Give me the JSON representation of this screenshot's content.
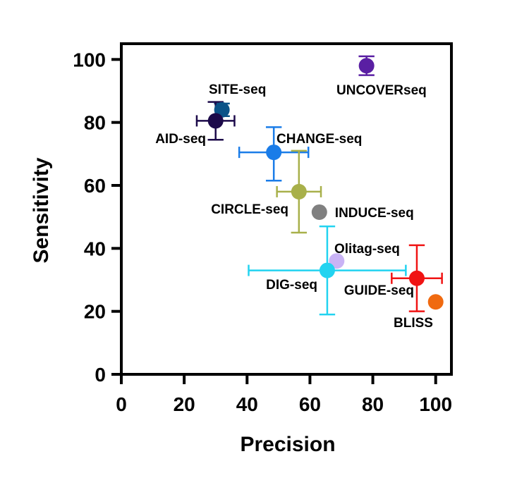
{
  "chart_data": {
    "type": "scatter",
    "title": "",
    "xlabel": "Precision",
    "ylabel": "Sensitivity",
    "xlim": [
      0,
      105
    ],
    "ylim": [
      0,
      105
    ],
    "xticks": [
      0,
      20,
      40,
      60,
      80,
      100
    ],
    "yticks": [
      0,
      20,
      40,
      60,
      80,
      100
    ],
    "grid": false,
    "legend": "none",
    "points": [
      {
        "label": "UNCOVERseq",
        "x": 78,
        "y": 98,
        "xerr": [
          0,
          0
        ],
        "yerr": [
          3,
          3
        ],
        "color": "#5a1fa3",
        "label_anchor": "below-right"
      },
      {
        "label": "SITE-seq",
        "x": 32,
        "y": 84,
        "xerr": [
          0,
          0
        ],
        "yerr": [
          2,
          2
        ],
        "color": "#0b5287",
        "label_anchor": "above-left"
      },
      {
        "label": "AID-seq",
        "x": 30,
        "y": 80.5,
        "xerr": [
          6,
          6
        ],
        "yerr": [
          6,
          6
        ],
        "color": "#1c0a4a",
        "label_anchor": "below-left"
      },
      {
        "label": "CHANGE-seq",
        "x": 48.5,
        "y": 70.5,
        "xerr": [
          11,
          11
        ],
        "yerr": [
          9,
          8
        ],
        "color": "#1a7ce8",
        "label_anchor": "above-right"
      },
      {
        "label": "CIRCLE-seq",
        "x": 56.5,
        "y": 58,
        "xerr": [
          7,
          7
        ],
        "yerr": [
          13,
          13
        ],
        "color": "#a8b04a",
        "label_anchor": "below-left"
      },
      {
        "label": "INDUCE-seq",
        "x": 63,
        "y": 51.5,
        "xerr": [
          0,
          0
        ],
        "yerr": [
          0,
          0
        ],
        "color": "#808080",
        "label_anchor": "right"
      },
      {
        "label": "Olitag-seq",
        "x": 68.5,
        "y": 36,
        "xerr": [
          0,
          0
        ],
        "yerr": [
          0,
          0
        ],
        "color": "#c9b3f5",
        "label_anchor": "above-right"
      },
      {
        "label": "DIG-seq",
        "x": 65.5,
        "y": 33,
        "xerr": [
          25,
          25
        ],
        "yerr": [
          14,
          14
        ],
        "color": "#22d3f0",
        "label_anchor": "below-left"
      },
      {
        "label": "GUIDE-seq",
        "x": 94,
        "y": 30.5,
        "xerr": [
          8,
          8
        ],
        "yerr": [
          10.5,
          10.5
        ],
        "color": "#f01414",
        "label_anchor": "below-left"
      },
      {
        "label": "BLISS",
        "x": 100,
        "y": 23,
        "xerr": [
          0,
          0
        ],
        "yerr": [
          0,
          0
        ],
        "color": "#f06a10",
        "label_anchor": "below-left"
      }
    ]
  }
}
